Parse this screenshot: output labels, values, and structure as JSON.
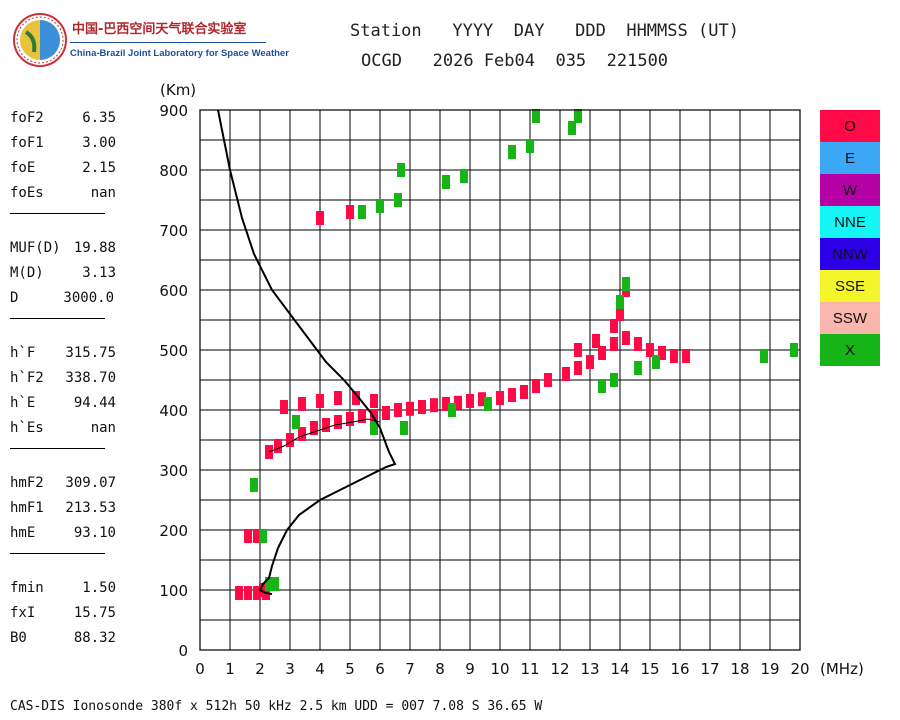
{
  "logo": {
    "cn_text": "中国-巴西空间天气联合实验室",
    "en_text": "China-Brazil Joint Laboratory for Space Weather"
  },
  "header": {
    "line1": "Station   YYYY  DAY   DDD  HHMMSS (UT)",
    "line2": "OCGD   2026 Feb04  035  221500"
  },
  "parameters": [
    [
      {
        "label": "foF2",
        "value": "6.35"
      },
      {
        "label": "foF1",
        "value": "3.00"
      },
      {
        "label": "foE",
        "value": "2.15"
      },
      {
        "label": "foEs",
        "value": "nan"
      }
    ],
    [
      {
        "label": "MUF(D)",
        "value": "19.88"
      },
      {
        "label": "M(D)",
        "value": "3.13"
      },
      {
        "label": "D",
        "value": "3000.0"
      }
    ],
    [
      {
        "label": "h`F",
        "value": "315.75"
      },
      {
        "label": "h`F2",
        "value": "338.70"
      },
      {
        "label": "h`E",
        "value": "94.44"
      },
      {
        "label": "h`Es",
        "value": "nan"
      }
    ],
    [
      {
        "label": "hmF2",
        "value": "309.07"
      },
      {
        "label": "hmF1",
        "value": "213.53"
      },
      {
        "label": "hmE",
        "value": "93.10"
      }
    ],
    [
      {
        "label": "fmin",
        "value": "1.50"
      },
      {
        "label": "fxI",
        "value": "15.75"
      },
      {
        "label": "B0",
        "value": "88.32"
      }
    ]
  ],
  "legend": [
    {
      "label": "O",
      "color": "#ff0a46"
    },
    {
      "label": "E",
      "color": "#3ca8f5"
    },
    {
      "label": "W",
      "color": "#b400a5"
    },
    {
      "label": "NNE",
      "color": "#16f5f5"
    },
    {
      "label": "NNW",
      "color": "#2b00e8"
    },
    {
      "label": "SSE",
      "color": "#f5f52c"
    },
    {
      "label": "SSW",
      "color": "#fab6ac"
    },
    {
      "label": "X",
      "color": "#16b416"
    }
  ],
  "footer": "CAS-DIS Ionosonde 380f x 512h 50 kHz 2.5 km UDD = 007 7.08 S 36.65 W",
  "chart_data": {
    "type": "scatter",
    "xlabel": "(MHz)",
    "ylabel": "(Km)",
    "xlim": [
      0,
      20
    ],
    "ylim": [
      0,
      900
    ],
    "x_ticks": [
      0,
      1,
      2,
      3,
      4,
      5,
      6,
      7,
      8,
      9,
      10,
      11,
      12,
      13,
      14,
      15,
      16,
      17,
      18,
      19,
      20
    ],
    "y_ticks": [
      0,
      100,
      200,
      300,
      400,
      500,
      600,
      700,
      800,
      900
    ],
    "grid": true,
    "series": [
      {
        "name": "O",
        "color": "#ff0a46",
        "points": [
          [
            1.3,
            95
          ],
          [
            1.6,
            95
          ],
          [
            1.9,
            95
          ],
          [
            2.1,
            100
          ],
          [
            2.2,
            95
          ],
          [
            1.6,
            190
          ],
          [
            1.9,
            190
          ],
          [
            2.3,
            330
          ],
          [
            2.6,
            340
          ],
          [
            3.0,
            350
          ],
          [
            3.4,
            360
          ],
          [
            3.8,
            370
          ],
          [
            4.2,
            375
          ],
          [
            4.6,
            380
          ],
          [
            5.0,
            385
          ],
          [
            5.4,
            390
          ],
          [
            5.8,
            390
          ],
          [
            6.2,
            395
          ],
          [
            6.6,
            400
          ],
          [
            7.0,
            402
          ],
          [
            7.4,
            405
          ],
          [
            7.8,
            408
          ],
          [
            8.2,
            410
          ],
          [
            8.6,
            412
          ],
          [
            9.0,
            415
          ],
          [
            9.4,
            418
          ],
          [
            2.8,
            405
          ],
          [
            3.4,
            410
          ],
          [
            4.0,
            415
          ],
          [
            4.6,
            420
          ],
          [
            5.2,
            420
          ],
          [
            5.8,
            415
          ],
          [
            10.0,
            420
          ],
          [
            10.4,
            425
          ],
          [
            10.8,
            430
          ],
          [
            11.2,
            440
          ],
          [
            11.6,
            450
          ],
          [
            12.2,
            460
          ],
          [
            12.6,
            470
          ],
          [
            13.0,
            480
          ],
          [
            13.4,
            495
          ],
          [
            13.8,
            510
          ],
          [
            14.2,
            520
          ],
          [
            14.6,
            510
          ],
          [
            15.0,
            500
          ],
          [
            15.4,
            495
          ],
          [
            15.8,
            490
          ],
          [
            16.2,
            490
          ],
          [
            12.6,
            500
          ],
          [
            13.2,
            515
          ],
          [
            13.8,
            540
          ],
          [
            14.0,
            560
          ],
          [
            14.2,
            600
          ],
          [
            4.0,
            720
          ],
          [
            5.0,
            730
          ]
        ]
      },
      {
        "name": "X",
        "color": "#16b416",
        "points": [
          [
            2.1,
            190
          ],
          [
            2.3,
            110
          ],
          [
            2.5,
            110
          ],
          [
            1.8,
            275
          ],
          [
            3.2,
            380
          ],
          [
            5.8,
            370
          ],
          [
            6.8,
            370
          ],
          [
            8.4,
            400
          ],
          [
            9.6,
            410
          ],
          [
            5.4,
            730
          ],
          [
            6.0,
            740
          ],
          [
            6.6,
            750
          ],
          [
            6.7,
            800
          ],
          [
            8.2,
            780
          ],
          [
            8.8,
            790
          ],
          [
            10.4,
            830
          ],
          [
            11.0,
            840
          ],
          [
            11.2,
            890
          ],
          [
            12.4,
            870
          ],
          [
            12.6,
            890
          ],
          [
            13.4,
            440
          ],
          [
            13.8,
            450
          ],
          [
            14.0,
            580
          ],
          [
            14.2,
            610
          ],
          [
            14.6,
            470
          ],
          [
            15.2,
            480
          ],
          [
            18.8,
            490
          ],
          [
            19.8,
            500
          ]
        ]
      }
    ],
    "profile_curve": [
      [
        0.6,
        900
      ],
      [
        0.8,
        850
      ],
      [
        1.0,
        800
      ],
      [
        1.4,
        720
      ],
      [
        1.8,
        660
      ],
      [
        2.4,
        600
      ],
      [
        3.0,
        560
      ],
      [
        3.6,
        520
      ],
      [
        4.2,
        480
      ],
      [
        4.8,
        450
      ],
      [
        5.3,
        420
      ],
      [
        5.7,
        395
      ],
      [
        6.0,
        370
      ],
      [
        6.3,
        330
      ],
      [
        6.5,
        310
      ],
      [
        6.2,
        305
      ],
      [
        5.2,
        280
      ],
      [
        4.0,
        250
      ],
      [
        3.3,
        225
      ],
      [
        2.9,
        200
      ],
      [
        2.6,
        170
      ],
      [
        2.4,
        140
      ],
      [
        2.3,
        120
      ],
      [
        2.1,
        110
      ],
      [
        2.0,
        100
      ],
      [
        2.2,
        95
      ],
      [
        2.4,
        93
      ]
    ],
    "trace_curve": [
      [
        2.3,
        330
      ],
      [
        2.8,
        340
      ],
      [
        3.3,
        355
      ],
      [
        3.9,
        365
      ],
      [
        4.5,
        375
      ],
      [
        5.1,
        380
      ],
      [
        5.6,
        385
      ],
      [
        6.0,
        380
      ]
    ]
  }
}
